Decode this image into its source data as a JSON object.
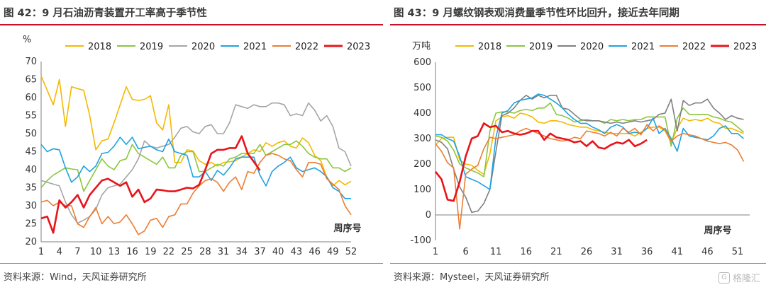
{
  "left": {
    "title": "图 42：9 月石油沥青装置开工率高于季节性",
    "source": "资料来源：Wind，天风证券研究所"
  },
  "right": {
    "title": "图 43：9 月螺纹钢表观消费量季节性环比回升，接近去年同期",
    "source": "资料来源：Mysteel，天风证券研究所"
  },
  "watermark": {
    "text": "格隆汇",
    "icon": "logo-icon"
  },
  "chart_data": [
    {
      "type": "line",
      "unit_label": "%",
      "xlabel": "周序号",
      "ylim": [
        20,
        70
      ],
      "yticks": [
        20,
        25,
        30,
        35,
        40,
        45,
        50,
        55,
        60,
        65,
        70
      ],
      "xticks": [
        1,
        4,
        7,
        10,
        13,
        16,
        19,
        22,
        25,
        28,
        31,
        34,
        37,
        40,
        43,
        46,
        49,
        52
      ],
      "xlim": [
        1,
        52
      ],
      "grid": false,
      "legend_position": "top",
      "series": [
        {
          "name": "2018",
          "color": "#f5b800",
          "width": 1.6,
          "values": [
            66,
            62,
            58,
            65,
            52,
            63,
            62.5,
            62,
            55,
            45.5,
            48,
            48.5,
            53,
            58,
            63,
            59.5,
            59.2,
            59.5,
            60.5,
            53,
            51,
            58,
            42,
            42,
            45.5,
            45.2,
            42.5,
            41.5,
            42,
            41,
            42,
            42.2,
            42.5,
            43.5,
            44.5,
            45.5,
            45,
            47.5,
            46.5,
            47.5,
            48,
            46.5,
            46,
            48.8,
            47.5,
            44,
            42.5,
            38,
            35.5,
            37,
            35.8,
            36.8
          ]
        },
        {
          "name": "2019",
          "color": "#8cc63f",
          "width": 1.6,
          "values": [
            35,
            37,
            38.5,
            39.5,
            40.5,
            40.2,
            40,
            34,
            37,
            40,
            43,
            41,
            40,
            42.5,
            43,
            47,
            44.5,
            43.5,
            42.5,
            41.5,
            43.5,
            40.5,
            40.5,
            44,
            45,
            45,
            39.5,
            39.5,
            40.5,
            41.5,
            41,
            43,
            43.5,
            44.5,
            44.5,
            44.5,
            47,
            44,
            45,
            46,
            47,
            47,
            48,
            46.5,
            44.5,
            43.5,
            43,
            43,
            40.5,
            40.5,
            39.5,
            40.5
          ]
        },
        {
          "name": "2020",
          "color": "#a6a6a6",
          "width": 1.6,
          "values": [
            37,
            36.5,
            36,
            35.5,
            31,
            27.5,
            25.2,
            26,
            27,
            29,
            33,
            35,
            35.5,
            36,
            38,
            40,
            43,
            48,
            46.5,
            46,
            46.5,
            47,
            49,
            51.5,
            52,
            50.5,
            50,
            52,
            52.5,
            50,
            50,
            53,
            58,
            57.5,
            57,
            58,
            57.5,
            57.5,
            58.5,
            58.5,
            58,
            55,
            55.5,
            55,
            58.5,
            56.5,
            53.5,
            55,
            52,
            46,
            45,
            41
          ]
        },
        {
          "name": "2021",
          "color": "#1fa2e0",
          "width": 1.6,
          "values": [
            47,
            45,
            45.8,
            45.5,
            40.5,
            36.5,
            38,
            41,
            39.5,
            41,
            44.5,
            44.8,
            46.5,
            49,
            47,
            49,
            45.8,
            46.2,
            46.5,
            45.5,
            45,
            48.5,
            45,
            44.5,
            44,
            38,
            38,
            39.5,
            37,
            39.8,
            38.5,
            40.5,
            43,
            43.5,
            43.5,
            43.5,
            38.5,
            35.5,
            39.5,
            41,
            42,
            43.5,
            40.5,
            39.5,
            40,
            40.5,
            39.5,
            38,
            35,
            34,
            32,
            32
          ]
        },
        {
          "name": "2022",
          "color": "#ed7d31",
          "width": 1.6,
          "values": [
            31,
            31.5,
            30,
            31,
            30,
            30,
            25,
            24,
            27,
            29.5,
            25,
            27,
            25,
            25.5,
            27.5,
            25,
            22,
            23,
            26,
            26.5,
            24,
            27,
            27.5,
            30.5,
            30.5,
            33.5,
            35.5,
            37,
            37.5,
            36.5,
            34,
            36.5,
            38,
            34.5,
            39.5,
            39,
            42,
            44,
            44.5,
            44,
            43,
            42.5,
            40,
            38,
            42,
            42,
            41.5,
            37.5,
            36,
            34.5,
            30,
            27.5
          ]
        },
        {
          "name": "2023",
          "color": "#e8141b",
          "width": 2.6,
          "values": [
            26.5,
            27,
            22.5,
            31.5,
            29.5,
            31,
            33,
            29.5,
            33,
            35,
            37,
            37.5,
            36.5,
            35.5,
            36.5,
            32.5,
            34.5,
            31,
            32,
            34.5,
            34.3,
            34,
            34,
            34.5,
            35,
            34.8,
            35.8,
            40,
            44.5,
            45.5,
            45.5,
            46,
            46,
            49.3,
            44.5,
            42.2,
            39.8
          ]
        }
      ]
    },
    {
      "type": "line",
      "unit_label": "万吨",
      "xlabel": "周序号",
      "ylim": [
        -100,
        600
      ],
      "yticks": [
        -100,
        0,
        100,
        200,
        300,
        400,
        500,
        600
      ],
      "xticks": [
        1,
        6,
        11,
        16,
        21,
        26,
        31,
        36,
        41,
        46,
        51
      ],
      "xlim": [
        1,
        53
      ],
      "grid": false,
      "legend_position": "top",
      "series": [
        {
          "name": "2018",
          "color": "#f5b800",
          "width": 1.6,
          "values": [
            275,
            300,
            305,
            305,
            215,
            200,
            195,
            175,
            160,
            240,
            370,
            385,
            390,
            380,
            400,
            395,
            385,
            365,
            360,
            370,
            370,
            365,
            355,
            350,
            345,
            345,
            335,
            330,
            325,
            320,
            320,
            320,
            320,
            310,
            325,
            340,
            345,
            345,
            330,
            285,
            340,
            380,
            370,
            375,
            370,
            380,
            365,
            360,
            340,
            340,
            330,
            320
          ]
        },
        {
          "name": "2019",
          "color": "#8cc63f",
          "width": 1.6,
          "values": [
            310,
            305,
            290,
            255,
            200,
            185,
            175,
            165,
            150,
            330,
            400,
            405,
            405,
            400,
            410,
            415,
            410,
            420,
            420,
            440,
            395,
            390,
            380,
            365,
            370,
            375,
            370,
            370,
            360,
            375,
            370,
            375,
            370,
            375,
            375,
            385,
            385,
            385,
            385,
            270,
            380,
            420,
            395,
            395,
            395,
            395,
            385,
            380,
            370,
            365,
            345,
            325
          ]
        },
        {
          "name": "2020",
          "color": "#808080",
          "width": 1.6,
          "values": [
            295,
            285,
            260,
            180,
            110,
            70,
            10,
            15,
            45,
            100,
            250,
            390,
            400,
            420,
            450,
            470,
            455,
            470,
            460,
            470,
            470,
            420,
            415,
            395,
            375,
            370,
            370,
            370,
            365,
            360,
            365,
            360,
            365,
            370,
            365,
            370,
            375,
            395,
            400,
            455,
            330,
            450,
            430,
            440,
            440,
            455,
            420,
            400,
            375,
            390,
            380,
            375
          ]
        },
        {
          "name": "2021",
          "color": "#1fa2e0",
          "width": 1.6,
          "values": [
            315,
            315,
            300,
            290,
            230,
            150,
            140,
            130,
            115,
            100,
            305,
            400,
            410,
            440,
            450,
            455,
            460,
            475,
            470,
            455,
            440,
            420,
            395,
            375,
            360,
            360,
            345,
            335,
            320,
            345,
            355,
            345,
            320,
            325,
            320,
            340,
            380,
            320,
            340,
            300,
            250,
            340,
            310,
            305,
            300,
            295,
            310,
            340,
            350,
            320,
            320,
            300
          ]
        },
        {
          "name": "2022",
          "color": "#ed7d31",
          "width": 1.6,
          "values": [
            280,
            250,
            205,
            185,
            -55,
            160,
            180,
            195,
            260,
            305,
            300,
            305,
            310,
            315,
            330,
            340,
            330,
            320,
            310,
            300,
            295,
            290,
            295,
            305,
            300,
            330,
            325,
            320,
            310,
            325,
            310,
            340,
            325,
            340,
            315,
            355,
            330,
            350,
            335,
            290,
            310,
            320,
            315,
            310,
            300,
            290,
            285,
            280,
            285,
            275,
            255,
            210
          ]
        },
        {
          "name": "2023",
          "color": "#e8141b",
          "width": 2.6,
          "values": [
            170,
            140,
            60,
            55,
            130,
            230,
            300,
            310,
            360,
            345,
            350,
            325,
            330,
            320,
            315,
            320,
            330,
            330,
            295,
            320,
            305,
            300,
            295,
            285,
            290,
            270,
            290,
            265,
            260,
            275,
            285,
            280,
            295,
            270,
            280,
            295
          ]
        }
      ]
    }
  ]
}
